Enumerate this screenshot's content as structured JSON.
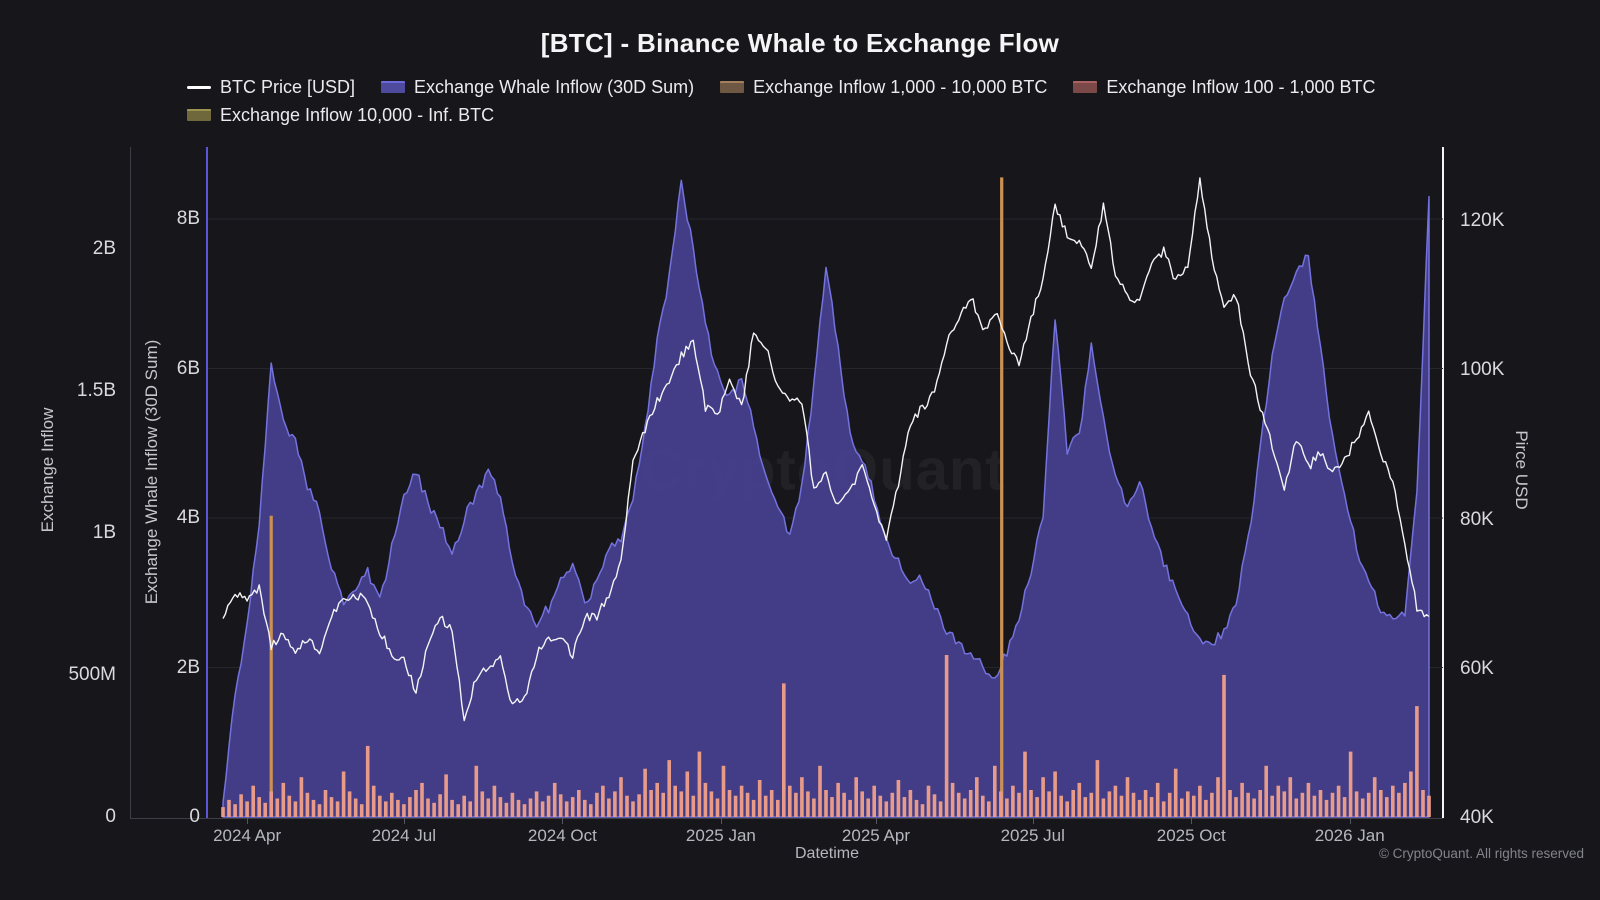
{
  "title": "[BTC] - Binance Whale to Exchange Flow",
  "watermark": "CryptoQuant",
  "copyright": "© CryptoQuant. All rights reserved",
  "colors": {
    "background": "#17171b",
    "price_line": "#f4f4f6",
    "whale_fill": "#45408d",
    "whale_edge": "#7472de",
    "inflow_100_1000_bar": "#e99b89",
    "inflow_1000_10000_bar": "#cb9153",
    "inner_axis": "#5a56d6",
    "right_axis": "#f5f5f7",
    "outer_axis": "#3e3e46",
    "gridline": "#26262d"
  },
  "legend": [
    {
      "label": "BTC Price [USD]",
      "type": "line",
      "color": "#ffffff",
      "edge": "#ffffff"
    },
    {
      "label": "Exchange Whale Inflow (30D Sum)",
      "type": "rect",
      "color": "#4e4a9e",
      "edge": "#6c6ada"
    },
    {
      "label": "Exchange Inflow 1,000 - 10,000 BTC",
      "type": "rect",
      "color": "#6e5844",
      "edge": "#a5805c"
    },
    {
      "label": "Exchange Inflow 100 - 1,000 BTC",
      "type": "rect",
      "color": "#7b4a48",
      "edge": "#a66361"
    },
    {
      "label": "Exchange Inflow 10,000 - Inf. BTC",
      "type": "rect",
      "color": "#6f683c",
      "edge": "#9d9350"
    }
  ],
  "axes": {
    "left_outer": {
      "title": "Exchange Inflow",
      "ticks": [
        "0",
        "500M",
        "1B",
        "1.5B",
        "2B"
      ],
      "tick_values_m": [
        0,
        500,
        1000,
        1500,
        2000
      ]
    },
    "left_inner": {
      "title": "Exchange Whale Inflow (30D Sum)",
      "ticks": [
        "0",
        "2B",
        "4B",
        "6B",
        "8B"
      ],
      "tick_values_b": [
        0,
        2,
        4,
        6,
        8
      ]
    },
    "right": {
      "title": "Pirce USD",
      "ticks": [
        "40K",
        "60K",
        "80K",
        "100K",
        "120K"
      ],
      "tick_values_k": [
        40,
        60,
        80,
        100,
        120
      ]
    },
    "x": {
      "title": "Datetime",
      "ticks": [
        "2024 Apr",
        "2024 Jul",
        "2024 Oct",
        "2025 Jan",
        "2025 Apr",
        "2025 Jul",
        "2025 Oct",
        "2026 Jan"
      ]
    }
  },
  "chart_data": {
    "type": "mixed",
    "x_start": "2024-03-18",
    "x_step_days": 7,
    "ylim_whale_b": [
      0,
      9
    ],
    "ylim_price_k": [
      40,
      130
    ],
    "ylim_inflow_m": [
      0,
      2360
    ],
    "grid": "horizontal-only",
    "series": [
      {
        "name": "BTC Price [USD]",
        "type": "line",
        "axis": "price",
        "unit": "K USD",
        "values": [
          67,
          70,
          69,
          71,
          63,
          65,
          62,
          64,
          62,
          67,
          69,
          70,
          69,
          65,
          62,
          61,
          57,
          63,
          67,
          65,
          53,
          59,
          60,
          62,
          55,
          56,
          62,
          64,
          64,
          62,
          67,
          67,
          70,
          74,
          88,
          92,
          96,
          98,
          102,
          104,
          95,
          94,
          99,
          95,
          105,
          103,
          98,
          96,
          96,
          84,
          86,
          82,
          84,
          87,
          82,
          77,
          85,
          93,
          95,
          97,
          104,
          107,
          110,
          105,
          108,
          104,
          101,
          107,
          112,
          122,
          118,
          117,
          114,
          122,
          113,
          110,
          109,
          114,
          116,
          112,
          114,
          126,
          115,
          108,
          110,
          101,
          95,
          90,
          84,
          91,
          87,
          89,
          86,
          88,
          91,
          94,
          89,
          85,
          77,
          68,
          67
        ]
      },
      {
        "name": "Exchange Whale Inflow (30D Sum)",
        "type": "area",
        "axis": "whale",
        "unit": "B USD",
        "values": [
          0.2,
          1.6,
          2.6,
          3.9,
          6.1,
          5.3,
          5.0,
          4.4,
          4.1,
          3.3,
          2.9,
          3.1,
          3.3,
          2.9,
          3.6,
          4.3,
          4.6,
          4.2,
          3.9,
          3.5,
          4.0,
          4.3,
          4.6,
          4.3,
          3.4,
          2.9,
          2.6,
          2.8,
          3.2,
          3.4,
          2.9,
          3.1,
          3.6,
          3.7,
          4.3,
          5.2,
          6.4,
          7.2,
          8.5,
          7.6,
          6.6,
          5.9,
          5.6,
          5.9,
          5.2,
          4.6,
          4.1,
          3.8,
          4.4,
          5.8,
          7.4,
          6.3,
          5.1,
          4.8,
          4.3,
          3.7,
          3.4,
          3.1,
          3.2,
          2.8,
          2.5,
          2.3,
          2.2,
          2.0,
          1.9,
          2.2,
          2.7,
          3.3,
          4.0,
          6.7,
          4.9,
          5.1,
          6.3,
          5.3,
          4.6,
          4.1,
          4.5,
          3.9,
          3.4,
          3.0,
          2.7,
          2.4,
          2.3,
          2.5,
          2.9,
          3.7,
          4.9,
          6.2,
          6.9,
          7.3,
          7.5,
          6.3,
          5.1,
          4.3,
          3.6,
          3.1,
          2.8,
          2.6,
          2.7,
          4.3,
          8.3
        ]
      },
      {
        "name": "Exchange Inflow 100 - 1,000 BTC",
        "type": "bar",
        "axis": "inflow",
        "unit": "M USD",
        "x_step_days": 3.5,
        "values": [
          35,
          60,
          45,
          80,
          55,
          110,
          70,
          50,
          90,
          65,
          120,
          75,
          55,
          140,
          85,
          60,
          45,
          95,
          70,
          55,
          160,
          90,
          65,
          45,
          250,
          110,
          75,
          55,
          85,
          60,
          45,
          70,
          95,
          120,
          65,
          50,
          80,
          150,
          60,
          45,
          75,
          55,
          180,
          90,
          65,
          110,
          70,
          50,
          85,
          60,
          45,
          65,
          90,
          55,
          75,
          120,
          80,
          55,
          70,
          95,
          60,
          45,
          85,
          110,
          65,
          90,
          140,
          75,
          55,
          80,
          170,
          95,
          120,
          85,
          200,
          110,
          90,
          160,
          75,
          230,
          120,
          90,
          65,
          180,
          95,
          75,
          110,
          85,
          60,
          130,
          75,
          95,
          60,
          470,
          110,
          85,
          140,
          90,
          65,
          180,
          95,
          70,
          120,
          85,
          60,
          140,
          90,
          65,
          110,
          75,
          55,
          85,
          130,
          70,
          95,
          60,
          45,
          110,
          80,
          55,
          570,
          120,
          85,
          65,
          95,
          140,
          75,
          55,
          180,
          90,
          65,
          110,
          85,
          230,
          95,
          70,
          140,
          90,
          160,
          75,
          55,
          95,
          120,
          70,
          85,
          200,
          65,
          90,
          110,
          75,
          140,
          85,
          60,
          95,
          70,
          120,
          55,
          85,
          170,
          65,
          90,
          75,
          110,
          60,
          85,
          140,
          500,
          95,
          70,
          120,
          85,
          65,
          95,
          180,
          75,
          110,
          90,
          140,
          65,
          85,
          120,
          75,
          95,
          60,
          85,
          110,
          70,
          230,
          90,
          65,
          85,
          140,
          95,
          70,
          110,
          85,
          120,
          160,
          390,
          95,
          75
        ]
      },
      {
        "name": "Exchange Inflow 1,000 - 10,000 BTC",
        "type": "bar",
        "axis": "inflow",
        "unit": "M USD",
        "spikes": [
          {
            "date": "2024-04-15",
            "value_m": 1060
          },
          {
            "date": "2025-06-13",
            "value_m": 2250
          }
        ]
      },
      {
        "name": "Exchange Inflow 10,000 - Inf. BTC",
        "type": "bar",
        "axis": "inflow",
        "unit": "M USD",
        "spikes": []
      }
    ]
  }
}
